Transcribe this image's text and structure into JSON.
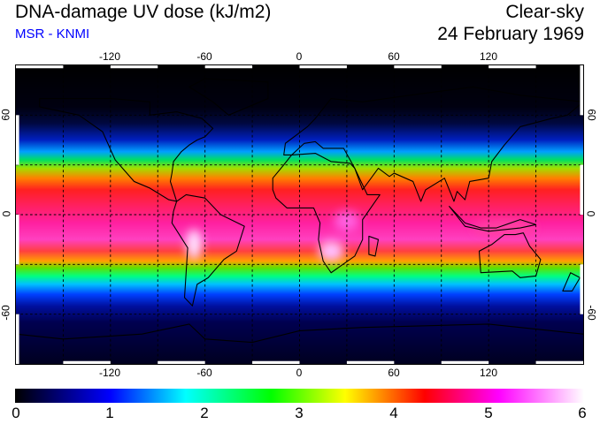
{
  "header": {
    "title": "DNA-damage UV dose (kJ/m2)",
    "subtitle": "MSR - KNMI",
    "mode": "Clear-sky",
    "date": "24 February 1969"
  },
  "map": {
    "lon_ticks": [
      "-120",
      "-60",
      "0",
      "60",
      "120"
    ],
    "lat_ticks": [
      "60",
      "0",
      "-60"
    ]
  },
  "colorbar": {
    "labels": [
      "0",
      "1",
      "2",
      "3",
      "4",
      "5",
      "6"
    ],
    "range": [
      0,
      6
    ],
    "unit": "kJ/m2",
    "colors": [
      "#000000",
      "#0000ff",
      "#00ffff",
      "#00ff00",
      "#ffff00",
      "#ff0000",
      "#ff00ff",
      "#ffffff"
    ]
  }
}
